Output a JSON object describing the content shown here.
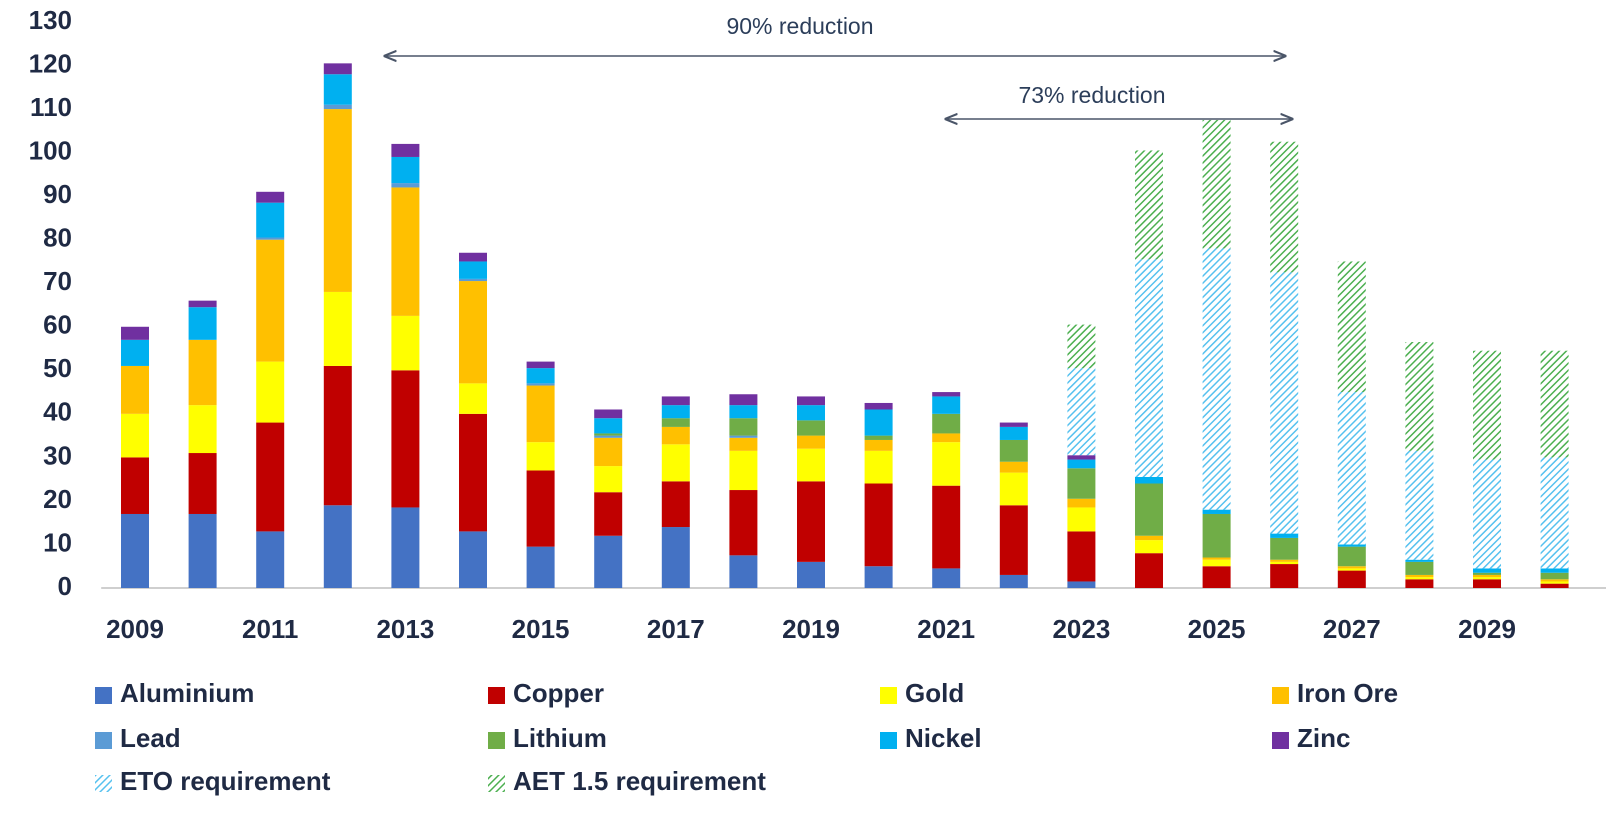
{
  "chart_data": {
    "type": "stacked_bar",
    "categories": [
      "2009",
      null,
      "2011",
      null,
      "2013",
      null,
      "2015",
      null,
      "2017",
      null,
      "2019",
      null,
      "2021",
      null,
      "2023",
      null,
      "2025",
      null,
      "2027",
      null,
      "2029",
      null
    ],
    "series": [
      {
        "name": "Aluminium",
        "color": "#4472c4",
        "values": [
          17,
          17,
          13,
          19,
          18.5,
          13,
          9.5,
          12,
          14,
          7.5,
          6,
          5,
          4.5,
          3,
          1.5,
          0,
          0,
          0,
          0,
          0,
          0,
          0
        ]
      },
      {
        "name": "Copper",
        "color": "#c00000",
        "values": [
          13,
          14,
          25,
          32,
          31.5,
          27,
          17.5,
          10,
          10.5,
          15,
          18.5,
          19,
          19,
          16,
          11.5,
          8,
          5,
          5.5,
          4,
          2,
          2,
          1
        ]
      },
      {
        "name": "Gold",
        "color": "#ffff00",
        "values": [
          10,
          11,
          14,
          17,
          12.5,
          7,
          6.5,
          6,
          8.5,
          9,
          7.5,
          7.5,
          10,
          7.5,
          5.5,
          3,
          1.5,
          0.5,
          0.5,
          0.5,
          0.5,
          0.5
        ]
      },
      {
        "name": "Iron Ore",
        "color": "#ffc000",
        "values": [
          11,
          15,
          28,
          42,
          29.5,
          23.5,
          13,
          6.5,
          4,
          3,
          3,
          2.5,
          2,
          2.5,
          2,
          1,
          0.5,
          0.5,
          0.5,
          0.5,
          0.5,
          0.5
        ]
      },
      {
        "name": "Lead",
        "color": "#5b9bd5",
        "values": [
          0,
          0,
          0.5,
          1,
          1,
          0.5,
          0.5,
          0.5,
          0,
          0.5,
          0,
          0,
          0,
          0,
          0,
          0,
          0,
          0,
          0,
          0,
          0,
          0
        ]
      },
      {
        "name": "Lithium",
        "color": "#70ad47",
        "values": [
          0,
          0,
          0,
          0,
          0,
          0,
          0,
          0.5,
          2,
          4,
          3.5,
          1,
          4.5,
          5,
          7,
          12,
          10,
          5,
          4.5,
          3,
          0.5,
          1.5
        ]
      },
      {
        "name": "Nickel",
        "color": "#00b0f0",
        "values": [
          6,
          7.5,
          8,
          7,
          6,
          4,
          3.5,
          3.5,
          3,
          3,
          3.5,
          6,
          4,
          3,
          2,
          1.5,
          1,
          1,
          0.5,
          0.5,
          1,
          1
        ]
      },
      {
        "name": "Zinc",
        "color": "#7030a0",
        "values": [
          3,
          1.5,
          2.5,
          2.5,
          3,
          2,
          1.5,
          2,
          2,
          2.5,
          2,
          1.5,
          1,
          1,
          1,
          0,
          0,
          0,
          0,
          0,
          0,
          0
        ]
      },
      {
        "name": "ETO requirement",
        "color": "#56c1ef",
        "hatch": true,
        "values": [
          0,
          0,
          0,
          0,
          0,
          0,
          0,
          0,
          0,
          0,
          0,
          0,
          0,
          0,
          20,
          50,
          60,
          60,
          35,
          25,
          25,
          25.5
        ]
      },
      {
        "name": "AET 1.5 requirement",
        "color": "#4caf50",
        "hatch": true,
        "values": [
          0,
          0,
          0,
          0,
          0,
          0,
          0,
          0,
          0,
          0,
          0,
          0,
          0,
          0,
          10,
          25,
          29.5,
          30,
          30,
          25,
          25,
          24.5
        ]
      }
    ],
    "annotations": [
      {
        "text": "90% reduction"
      },
      {
        "text": "73% reduction"
      }
    ],
    "ylim": [
      0,
      130
    ],
    "yticks": [
      0,
      10,
      20,
      30,
      40,
      50,
      60,
      70,
      80,
      90,
      100,
      110,
      120,
      130
    ]
  }
}
